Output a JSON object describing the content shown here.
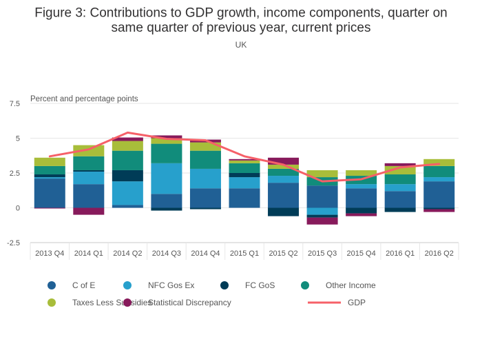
{
  "chart_data": {
    "type": "bar",
    "stacked": true,
    "title_line1": "Figure 3: Contributions to GDP growth, income components, quarter on",
    "title_line2": "same quarter of previous year, current prices",
    "subtitle": "UK",
    "ylabel": "Percent and percentage points",
    "ylim": [
      -2.5,
      7.5
    ],
    "yticks": [
      "7.5",
      "5",
      "2.5",
      "0",
      "-2.5"
    ],
    "ytick_values": [
      7.5,
      5,
      2.5,
      0,
      -2.5
    ],
    "grid": true,
    "legend_position": "bottom",
    "categories": [
      "2013 Q4",
      "2014 Q1",
      "2014 Q2",
      "2014 Q3",
      "2014 Q4",
      "2015 Q1",
      "2015 Q2",
      "2015 Q3",
      "2015 Q4",
      "2016 Q1",
      "2016 Q2"
    ],
    "series": [
      {
        "name": "C of E",
        "color": "#206095",
        "values": [
          2.1,
          1.7,
          0.2,
          1.0,
          1.4,
          1.4,
          1.8,
          1.6,
          1.4,
          1.2,
          1.9
        ]
      },
      {
        "name": "NFC Gos Ex",
        "color": "#27a0cc",
        "values": [
          0.1,
          0.9,
          1.7,
          2.2,
          1.4,
          0.8,
          0.5,
          -0.5,
          0.3,
          0.5,
          0.3
        ]
      },
      {
        "name": "FC GoS",
        "color": "#003c57",
        "values": [
          0.2,
          0.1,
          0.8,
          -0.2,
          -0.1,
          0.3,
          -0.6,
          -0.2,
          -0.4,
          -0.3,
          -0.1
        ]
      },
      {
        "name": "Other Income",
        "color": "#118c7b",
        "values": [
          0.6,
          1.0,
          1.4,
          1.4,
          1.3,
          0.7,
          0.5,
          0.6,
          0.6,
          0.7,
          0.8
        ]
      },
      {
        "name": "Taxes Less Subsidies",
        "color": "#a8bd3a",
        "values": [
          0.6,
          0.8,
          0.7,
          0.4,
          0.6,
          0.2,
          0.3,
          0.5,
          0.4,
          0.6,
          0.5
        ]
      },
      {
        "name": "Statistical Discrepancy",
        "color": "#871a5b",
        "values": [
          -0.05,
          -0.5,
          0.25,
          0.2,
          0.2,
          0.1,
          0.5,
          -0.5,
          -0.2,
          0.2,
          -0.2
        ]
      }
    ],
    "line": {
      "name": "GDP",
      "color": "#f66068",
      "values": [
        3.7,
        4.2,
        5.4,
        4.95,
        4.85,
        3.7,
        3.1,
        1.9,
        2.05,
        2.9,
        3.15
      ]
    }
  }
}
